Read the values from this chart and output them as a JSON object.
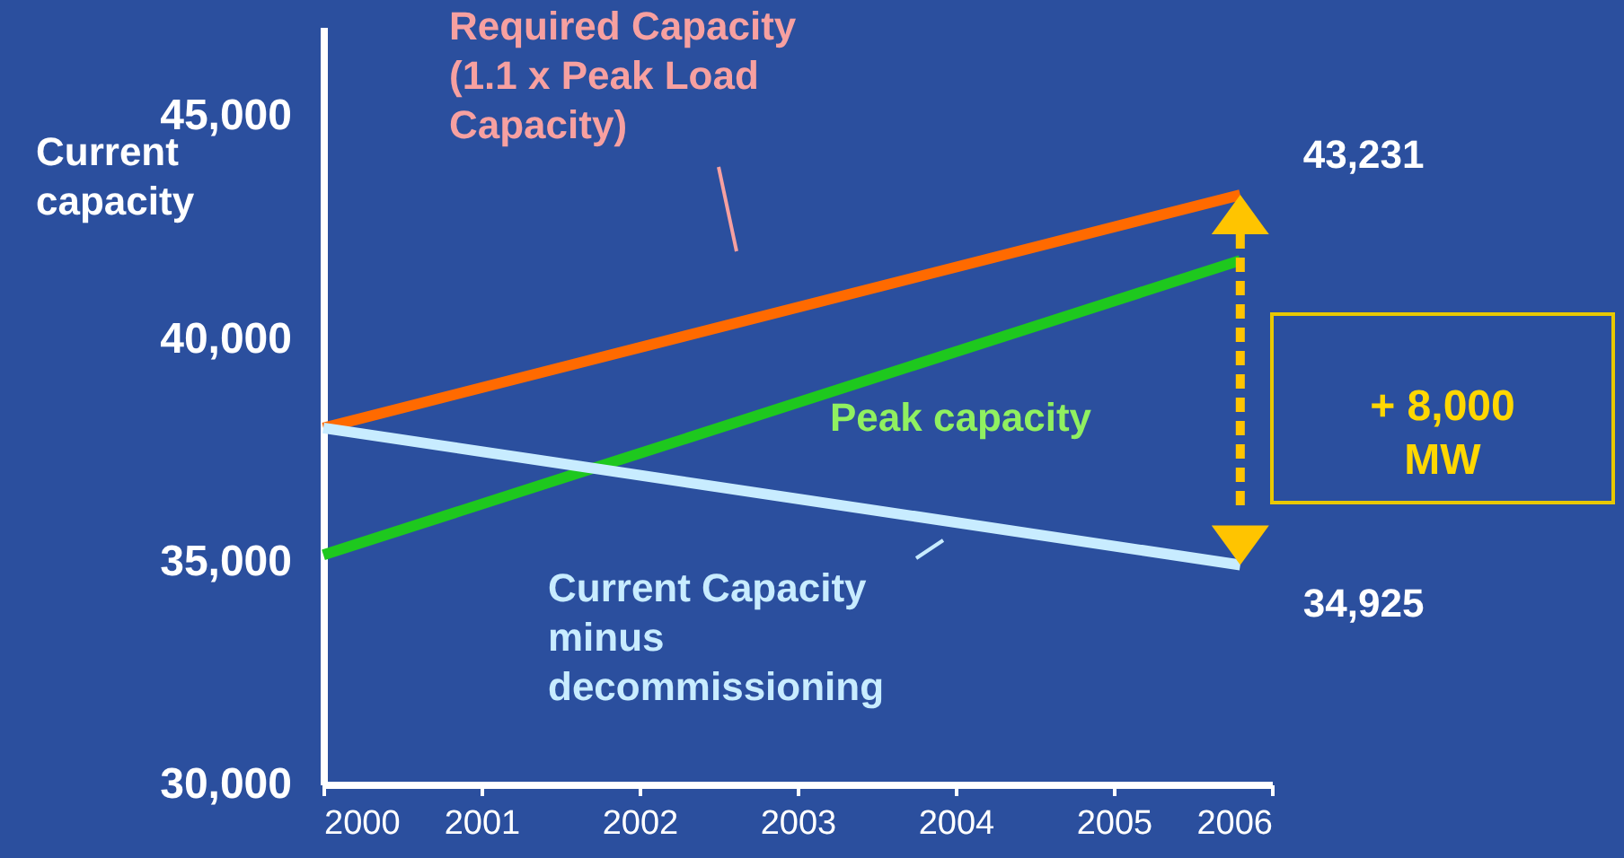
{
  "chart_data": {
    "type": "line",
    "ylabel": "Current\ncapacity",
    "x": [
      2000,
      2005.8
    ],
    "xlim": [
      2000,
      2006
    ],
    "xticks": [
      2000,
      2001,
      2002,
      2003,
      2004,
      2005,
      2006
    ],
    "ylim": [
      30000,
      47000
    ],
    "yticks": [
      {
        "value": 30000,
        "label": "30,000"
      },
      {
        "value": 35000,
        "label": "35,000"
      },
      {
        "value": 40000,
        "label": "40,000"
      },
      {
        "value": 45000,
        "label": "45,000"
      }
    ],
    "series": [
      {
        "name": "Required Capacity\n(1.1 x Peak Load\nCapacity)",
        "color": "#ff6a00",
        "values": [
          38000,
          43231
        ]
      },
      {
        "name": "Peak capacity",
        "color": "#1ec81e",
        "values": [
          35150,
          41760
        ]
      },
      {
        "name": "Current Capacity\nminus\ndecommissioning",
        "color": "#c8ecff",
        "values": [
          38000,
          34925
        ]
      }
    ],
    "annotations": [
      {
        "text": "43,231",
        "x": 2005.8,
        "y": 43231
      },
      {
        "text": "34,925",
        "x": 2005.8,
        "y": 34925
      },
      "+ 8,000\nMW"
    ],
    "grid": false,
    "marker": "none",
    "line_style": "solid"
  }
}
